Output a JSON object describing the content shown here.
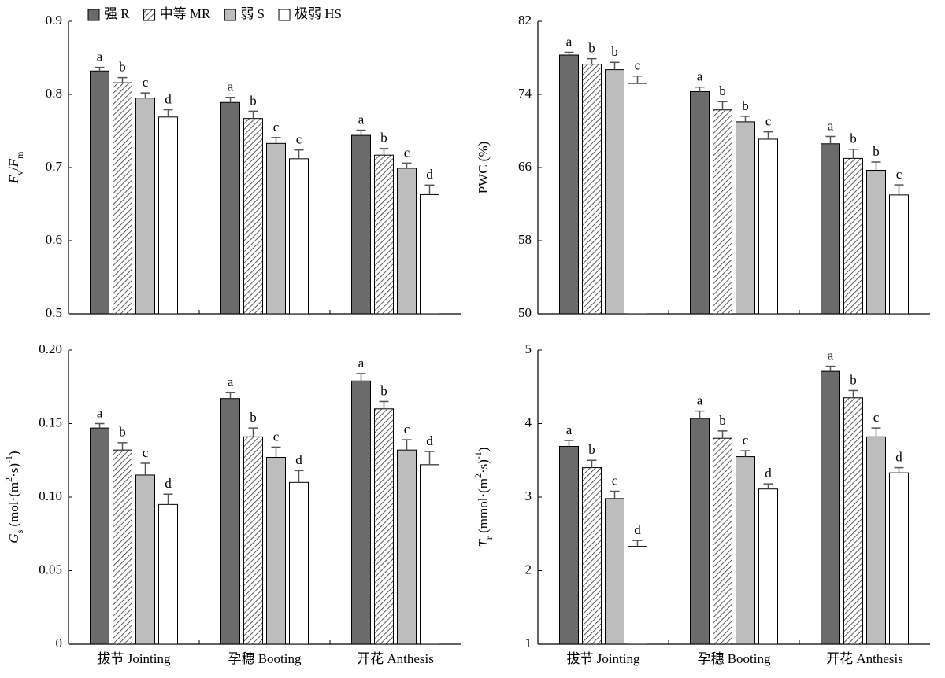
{
  "chart_data": [
    {
      "type": "bar",
      "legend": "top-left",
      "ylabel": [
        {
          "text": "F",
          "style": "italic"
        },
        {
          "text": "v",
          "style": "sub"
        },
        {
          "text": "/",
          "style": "normal"
        },
        {
          "text": "F",
          "style": "italic"
        },
        {
          "text": "m",
          "style": "sub"
        }
      ],
      "ylim": [
        0.5,
        0.9
      ],
      "yticks": [
        0.5,
        0.6,
        0.7,
        0.8,
        0.9
      ],
      "series": [
        {
          "name": "强 R",
          "color": "#6b6b6b",
          "values": [
            0.832,
            0.789,
            0.744
          ],
          "errors": [
            0.005,
            0.007,
            0.007
          ],
          "letters": [
            "a",
            "a",
            "a"
          ]
        },
        {
          "name": "中等 MR",
          "color": "#ffffff",
          "pattern": "hatch",
          "values": [
            0.816,
            0.767,
            0.717
          ],
          "errors": [
            0.007,
            0.01,
            0.009
          ],
          "letters": [
            "b",
            "b",
            "b"
          ]
        },
        {
          "name": "弱 S",
          "color": "#bdbdbd",
          "values": [
            0.795,
            0.733,
            0.699
          ],
          "errors": [
            0.007,
            0.008,
            0.007
          ],
          "letters": [
            "c",
            "c",
            "c"
          ]
        },
        {
          "name": "极弱 HS",
          "color": "#ffffff",
          "values": [
            0.769,
            0.712,
            0.663
          ],
          "errors": [
            0.01,
            0.012,
            0.013
          ],
          "letters": [
            "d",
            "c",
            "d"
          ]
        }
      ]
    },
    {
      "type": "bar",
      "ylabel": [
        {
          "text": "PWC (%)",
          "style": "normal"
        }
      ],
      "ylim": [
        50,
        82
      ],
      "yticks": [
        50,
        58,
        66,
        74,
        82
      ],
      "series": [
        {
          "color": "#6b6b6b",
          "values": [
            78.3,
            74.3,
            68.6
          ],
          "errors": [
            0.3,
            0.5,
            0.8
          ],
          "letters": [
            "a",
            "a",
            "a"
          ]
        },
        {
          "color": "#ffffff",
          "pattern": "hatch",
          "values": [
            77.3,
            72.3,
            67.0
          ],
          "errors": [
            0.6,
            0.9,
            1.0
          ],
          "letters": [
            "b",
            "b",
            "b"
          ]
        },
        {
          "color": "#bdbdbd",
          "values": [
            76.7,
            71.0,
            65.7
          ],
          "errors": [
            0.8,
            0.6,
            0.9
          ],
          "letters": [
            "b",
            "b",
            "b"
          ]
        },
        {
          "color": "#ffffff",
          "values": [
            75.2,
            69.1,
            63.0
          ],
          "errors": [
            0.8,
            0.8,
            1.1
          ],
          "letters": [
            "c",
            "c",
            "c"
          ]
        }
      ]
    },
    {
      "type": "bar",
      "categories": [
        "拔节 Jointing",
        "孕穗 Booting",
        "开花 Anthesis"
      ],
      "ylabel": [
        {
          "text": "G",
          "style": "italic"
        },
        {
          "text": "s",
          "style": "sub"
        },
        {
          "text": " (mol·(m",
          "style": "normal"
        },
        {
          "text": "2",
          "style": "sup"
        },
        {
          "text": "·s)",
          "style": "normal"
        },
        {
          "text": "-1",
          "style": "sup"
        },
        {
          "text": ")",
          "style": "normal"
        }
      ],
      "ylim": [
        0,
        0.2
      ],
      "yticks": [
        0,
        0.05,
        {
          "value": 0.1,
          "label": "0.10"
        },
        0.15,
        {
          "value": 0.2,
          "label": "0.20"
        }
      ],
      "series": [
        {
          "color": "#6b6b6b",
          "values": [
            0.147,
            0.167,
            0.179
          ],
          "errors": [
            0.003,
            0.004,
            0.005
          ],
          "letters": [
            "a",
            "a",
            "a"
          ]
        },
        {
          "color": "#ffffff",
          "pattern": "hatch",
          "values": [
            0.132,
            0.141,
            0.16
          ],
          "errors": [
            0.005,
            0.006,
            0.005
          ],
          "letters": [
            "b",
            "b",
            "b"
          ]
        },
        {
          "color": "#bdbdbd",
          "values": [
            0.115,
            0.127,
            0.132
          ],
          "errors": [
            0.008,
            0.007,
            0.007
          ],
          "letters": [
            "c",
            "c",
            "c"
          ]
        },
        {
          "color": "#ffffff",
          "values": [
            0.095,
            0.11,
            0.122
          ],
          "errors": [
            0.007,
            0.008,
            0.009
          ],
          "letters": [
            "d",
            "d",
            "d"
          ]
        }
      ]
    },
    {
      "type": "bar",
      "categories": [
        "拔节 Jointing",
        "孕穗 Booting",
        "开花 Anthesis"
      ],
      "ylabel": [
        {
          "text": "T",
          "style": "italic"
        },
        {
          "text": "r",
          "style": "sub"
        },
        {
          "text": " (mmol·(m",
          "style": "normal"
        },
        {
          "text": "2",
          "style": "sup"
        },
        {
          "text": "·s)",
          "style": "normal"
        },
        {
          "text": "-1",
          "style": "sup"
        },
        {
          "text": ")",
          "style": "normal"
        }
      ],
      "ylim": [
        1,
        5
      ],
      "yticks": [
        1,
        2,
        3,
        4,
        5
      ],
      "series": [
        {
          "color": "#6b6b6b",
          "values": [
            3.69,
            4.07,
            4.71
          ],
          "errors": [
            0.08,
            0.1,
            0.07
          ],
          "letters": [
            "a",
            "a",
            "a"
          ]
        },
        {
          "color": "#ffffff",
          "pattern": "hatch",
          "values": [
            3.4,
            3.8,
            4.35
          ],
          "errors": [
            0.1,
            0.1,
            0.1
          ],
          "letters": [
            "b",
            "b",
            "b"
          ]
        },
        {
          "color": "#bdbdbd",
          "values": [
            2.98,
            3.55,
            3.82
          ],
          "errors": [
            0.1,
            0.08,
            0.12
          ],
          "letters": [
            "c",
            "c",
            "c"
          ]
        },
        {
          "color": "#ffffff",
          "values": [
            2.33,
            3.11,
            3.33
          ],
          "errors": [
            0.08,
            0.07,
            0.07
          ],
          "letters": [
            "d",
            "d",
            "d"
          ]
        }
      ]
    }
  ]
}
